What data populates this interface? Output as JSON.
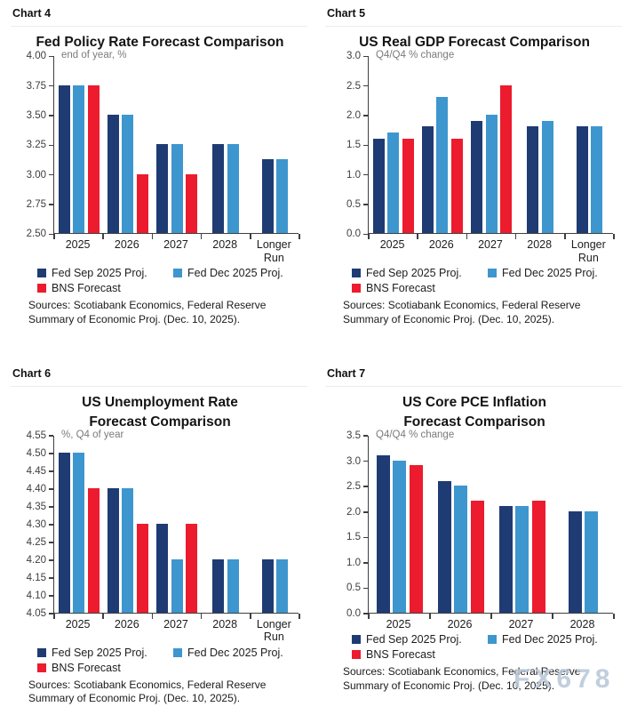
{
  "page": {
    "watermark": "FX678"
  },
  "chart_data": [
    {
      "type": "bar",
      "panel_label": "Chart 4",
      "title": "Fed Policy Rate Forecast Comparison",
      "title_lines": [
        "Fed Policy Rate Forecast Comparison"
      ],
      "unit_label": "end of year, %",
      "categories": [
        "2025",
        "2026",
        "2027",
        "2028",
        "Longer Run"
      ],
      "series": [
        {
          "name": "Fed Sep 2025 Proj.",
          "color": "#1F3B73",
          "values": [
            3.75,
            3.5,
            3.25,
            3.25,
            3.125
          ]
        },
        {
          "name": "Fed Dec 2025 Proj.",
          "color": "#3E96CE",
          "values": [
            3.75,
            3.5,
            3.25,
            3.25,
            3.125
          ]
        },
        {
          "name": "BNS Forecast",
          "color": "#EC1B2E",
          "values": [
            3.75,
            3.0,
            3.0,
            null,
            null
          ]
        }
      ],
      "ylim": [
        2.5,
        4.0
      ],
      "ytick_step": 0.25,
      "ytick_decimals": 2,
      "grid": false,
      "legend_position": "bottom",
      "sources_lines": [
        "Sources: Scotiabank Economics, Federal Reserve",
        "Summary of Economic Proj. (Dec. 10, 2025)."
      ]
    },
    {
      "type": "bar",
      "panel_label": "Chart 5",
      "title": "US Real GDP Forecast Comparison",
      "title_lines": [
        "US Real GDP Forecast Comparison"
      ],
      "unit_label": "Q4/Q4 % change",
      "categories": [
        "2025",
        "2026",
        "2027",
        "2028",
        "Longer Run"
      ],
      "series": [
        {
          "name": "Fed Sep 2025 Proj.",
          "color": "#1F3B73",
          "values": [
            1.6,
            1.8,
            1.9,
            1.8,
            1.8
          ]
        },
        {
          "name": "Fed Dec 2025 Proj.",
          "color": "#3E96CE",
          "values": [
            1.7,
            2.3,
            2.0,
            1.9,
            1.8
          ]
        },
        {
          "name": "BNS Forecast",
          "color": "#EC1B2E",
          "values": [
            1.6,
            1.6,
            2.5,
            null,
            null
          ]
        }
      ],
      "ylim": [
        0.0,
        3.0
      ],
      "ytick_step": 0.5,
      "ytick_decimals": 1,
      "grid": false,
      "legend_position": "bottom",
      "sources_lines": [
        "Sources: Scotiabank Economics, Federal Reserve",
        "Summary of Economic Proj. (Dec. 10, 2025)."
      ]
    },
    {
      "type": "bar",
      "panel_label": "Chart 6",
      "title": "US Unemployment Rate Forecast Comparison",
      "title_lines": [
        "US Unemployment Rate",
        "Forecast Comparison"
      ],
      "unit_label": "%, Q4 of year",
      "categories": [
        "2025",
        "2026",
        "2027",
        "2028",
        "Longer Run"
      ],
      "series": [
        {
          "name": "Fed Sep 2025 Proj.",
          "color": "#1F3B73",
          "values": [
            4.5,
            4.4,
            4.3,
            4.2,
            4.2
          ]
        },
        {
          "name": "Fed Dec 2025 Proj.",
          "color": "#3E96CE",
          "values": [
            4.5,
            4.4,
            4.2,
            4.2,
            4.2
          ]
        },
        {
          "name": "BNS Forecast",
          "color": "#EC1B2E",
          "values": [
            4.4,
            4.3,
            4.3,
            null,
            null
          ]
        }
      ],
      "ylim": [
        4.05,
        4.55
      ],
      "ytick_step": 0.05,
      "ytick_decimals": 2,
      "grid": false,
      "legend_position": "bottom",
      "sources_lines": [
        "Sources: Scotiabank Economics, Federal Reserve",
        "Summary of Economic Proj. (Dec. 10, 2025)."
      ]
    },
    {
      "type": "bar",
      "panel_label": "Chart 7",
      "title": "US Core PCE Inflation Forecast Comparison",
      "title_lines": [
        "US Core PCE Inflation",
        "Forecast Comparison"
      ],
      "unit_label": "Q4/Q4 % change",
      "categories": [
        "2025",
        "2026",
        "2027",
        "2028"
      ],
      "series": [
        {
          "name": "Fed Sep 2025 Proj.",
          "color": "#1F3B73",
          "values": [
            3.1,
            2.6,
            2.1,
            2.0
          ]
        },
        {
          "name": "Fed Dec 2025 Proj.",
          "color": "#3E96CE",
          "values": [
            3.0,
            2.5,
            2.1,
            2.0
          ]
        },
        {
          "name": "BNS Forecast",
          "color": "#EC1B2E",
          "values": [
            2.9,
            2.2,
            2.2,
            null
          ]
        }
      ],
      "ylim": [
        0.0,
        3.5
      ],
      "ytick_step": 0.5,
      "ytick_decimals": 1,
      "grid": false,
      "legend_position": "bottom",
      "sources_lines": [
        "Sources: Scotiabank Economics, Federal Reserve",
        "Summary of Economic Proj. (Dec. 10, 2025)."
      ]
    }
  ]
}
